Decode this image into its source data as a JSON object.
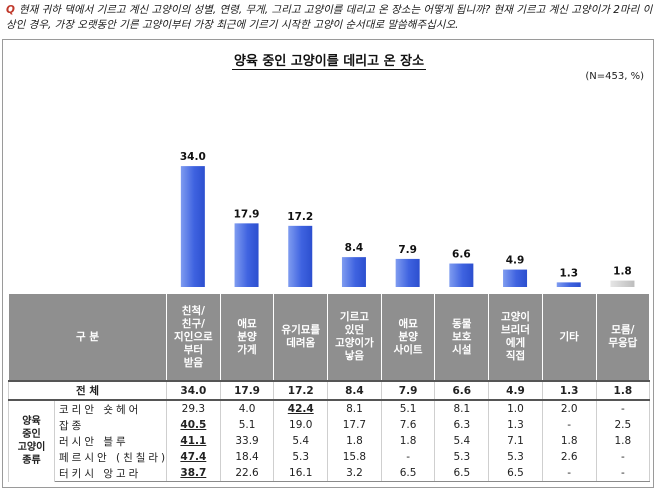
{
  "question": {
    "mark": "Q",
    "text": "현재 귀하 댁에서 기르고 계신 고양이의 성별, 연령, 무게, 그리고 고양이를 데리고 온 장소는 어떻게 됩니까? 현재 기르고 계신 고양이가 2마리 이상인 경우, 가장 오랫동안 기른 고양이부터 가장 최근에 기르기 시작한 고양이 순서대로 말씀해주십시오."
  },
  "chart_data": {
    "type": "bar",
    "title": "양육 중인 고양이를 데리고 온 장소",
    "note": "(N=453, %)",
    "categories": [
      "친척/친구/지인으로부터 받음",
      "애묘 분양 가게",
      "유기묘를 데려옴",
      "기르고 있던 고양이가 낳음",
      "애묘 분양 사이트",
      "동물 보호 시설",
      "고양이 브리더에게 직접",
      "기타",
      "모름/무응답"
    ],
    "values": [
      34.0,
      17.9,
      17.2,
      8.4,
      7.9,
      6.6,
      4.9,
      1.3,
      1.8
    ],
    "value_labels": [
      "34.0",
      "17.9",
      "17.2",
      "8.4",
      "7.9",
      "6.6",
      "4.9",
      "1.3",
      "1.8"
    ],
    "ylim": [
      0,
      36
    ],
    "grid": false,
    "colors": {
      "bar": "#3f63e0",
      "bar_light": "#7f9cf0",
      "other": "#c8c8c8"
    }
  },
  "table": {
    "header_label": "구 분",
    "columns": [
      [
        "친척/",
        "친구/",
        "지인으로",
        "부터",
        "받음"
      ],
      [
        "애묘",
        "분양",
        "가게"
      ],
      [
        "유기묘를",
        "데려옴"
      ],
      [
        "기르고",
        "있던",
        "고양이가",
        "낳음"
      ],
      [
        "애묘",
        "분양",
        "사이트"
      ],
      [
        "동물",
        "보호",
        "시설"
      ],
      [
        "고양이",
        "브리더",
        "에게",
        "직접"
      ],
      [
        "기타"
      ],
      [
        "모름/",
        "무응답"
      ]
    ],
    "total_label": "전 체",
    "total_values": [
      "34.0",
      "17.9",
      "17.2",
      "8.4",
      "7.9",
      "6.6",
      "4.9",
      "1.3",
      "1.8"
    ],
    "group_label": [
      "양육",
      "중인",
      "고양이",
      "종류"
    ],
    "rows": [
      {
        "label": "코리안 숏헤어",
        "values": [
          "29.3",
          "4.0",
          "42.4",
          "8.1",
          "5.1",
          "8.1",
          "1.0",
          "2.0",
          "-"
        ],
        "highlight": 2
      },
      {
        "label": "잡종",
        "values": [
          "40.5",
          "5.1",
          "19.0",
          "17.7",
          "7.6",
          "6.3",
          "1.3",
          "-",
          "2.5"
        ],
        "highlight": 0
      },
      {
        "label": "러시안 블루",
        "values": [
          "41.1",
          "33.9",
          "5.4",
          "1.8",
          "1.8",
          "5.4",
          "7.1",
          "1.8",
          "1.8"
        ],
        "highlight": 0
      },
      {
        "label": "페르시안 (친칠라)",
        "values": [
          "47.4",
          "18.4",
          "5.3",
          "15.8",
          "-",
          "5.3",
          "5.3",
          "2.6",
          "-"
        ],
        "highlight": 0
      },
      {
        "label": "터키시 앙고라",
        "values": [
          "38.7",
          "22.6",
          "16.1",
          "3.2",
          "6.5",
          "6.5",
          "6.5",
          "-",
          "-"
        ],
        "highlight": 0
      }
    ]
  }
}
